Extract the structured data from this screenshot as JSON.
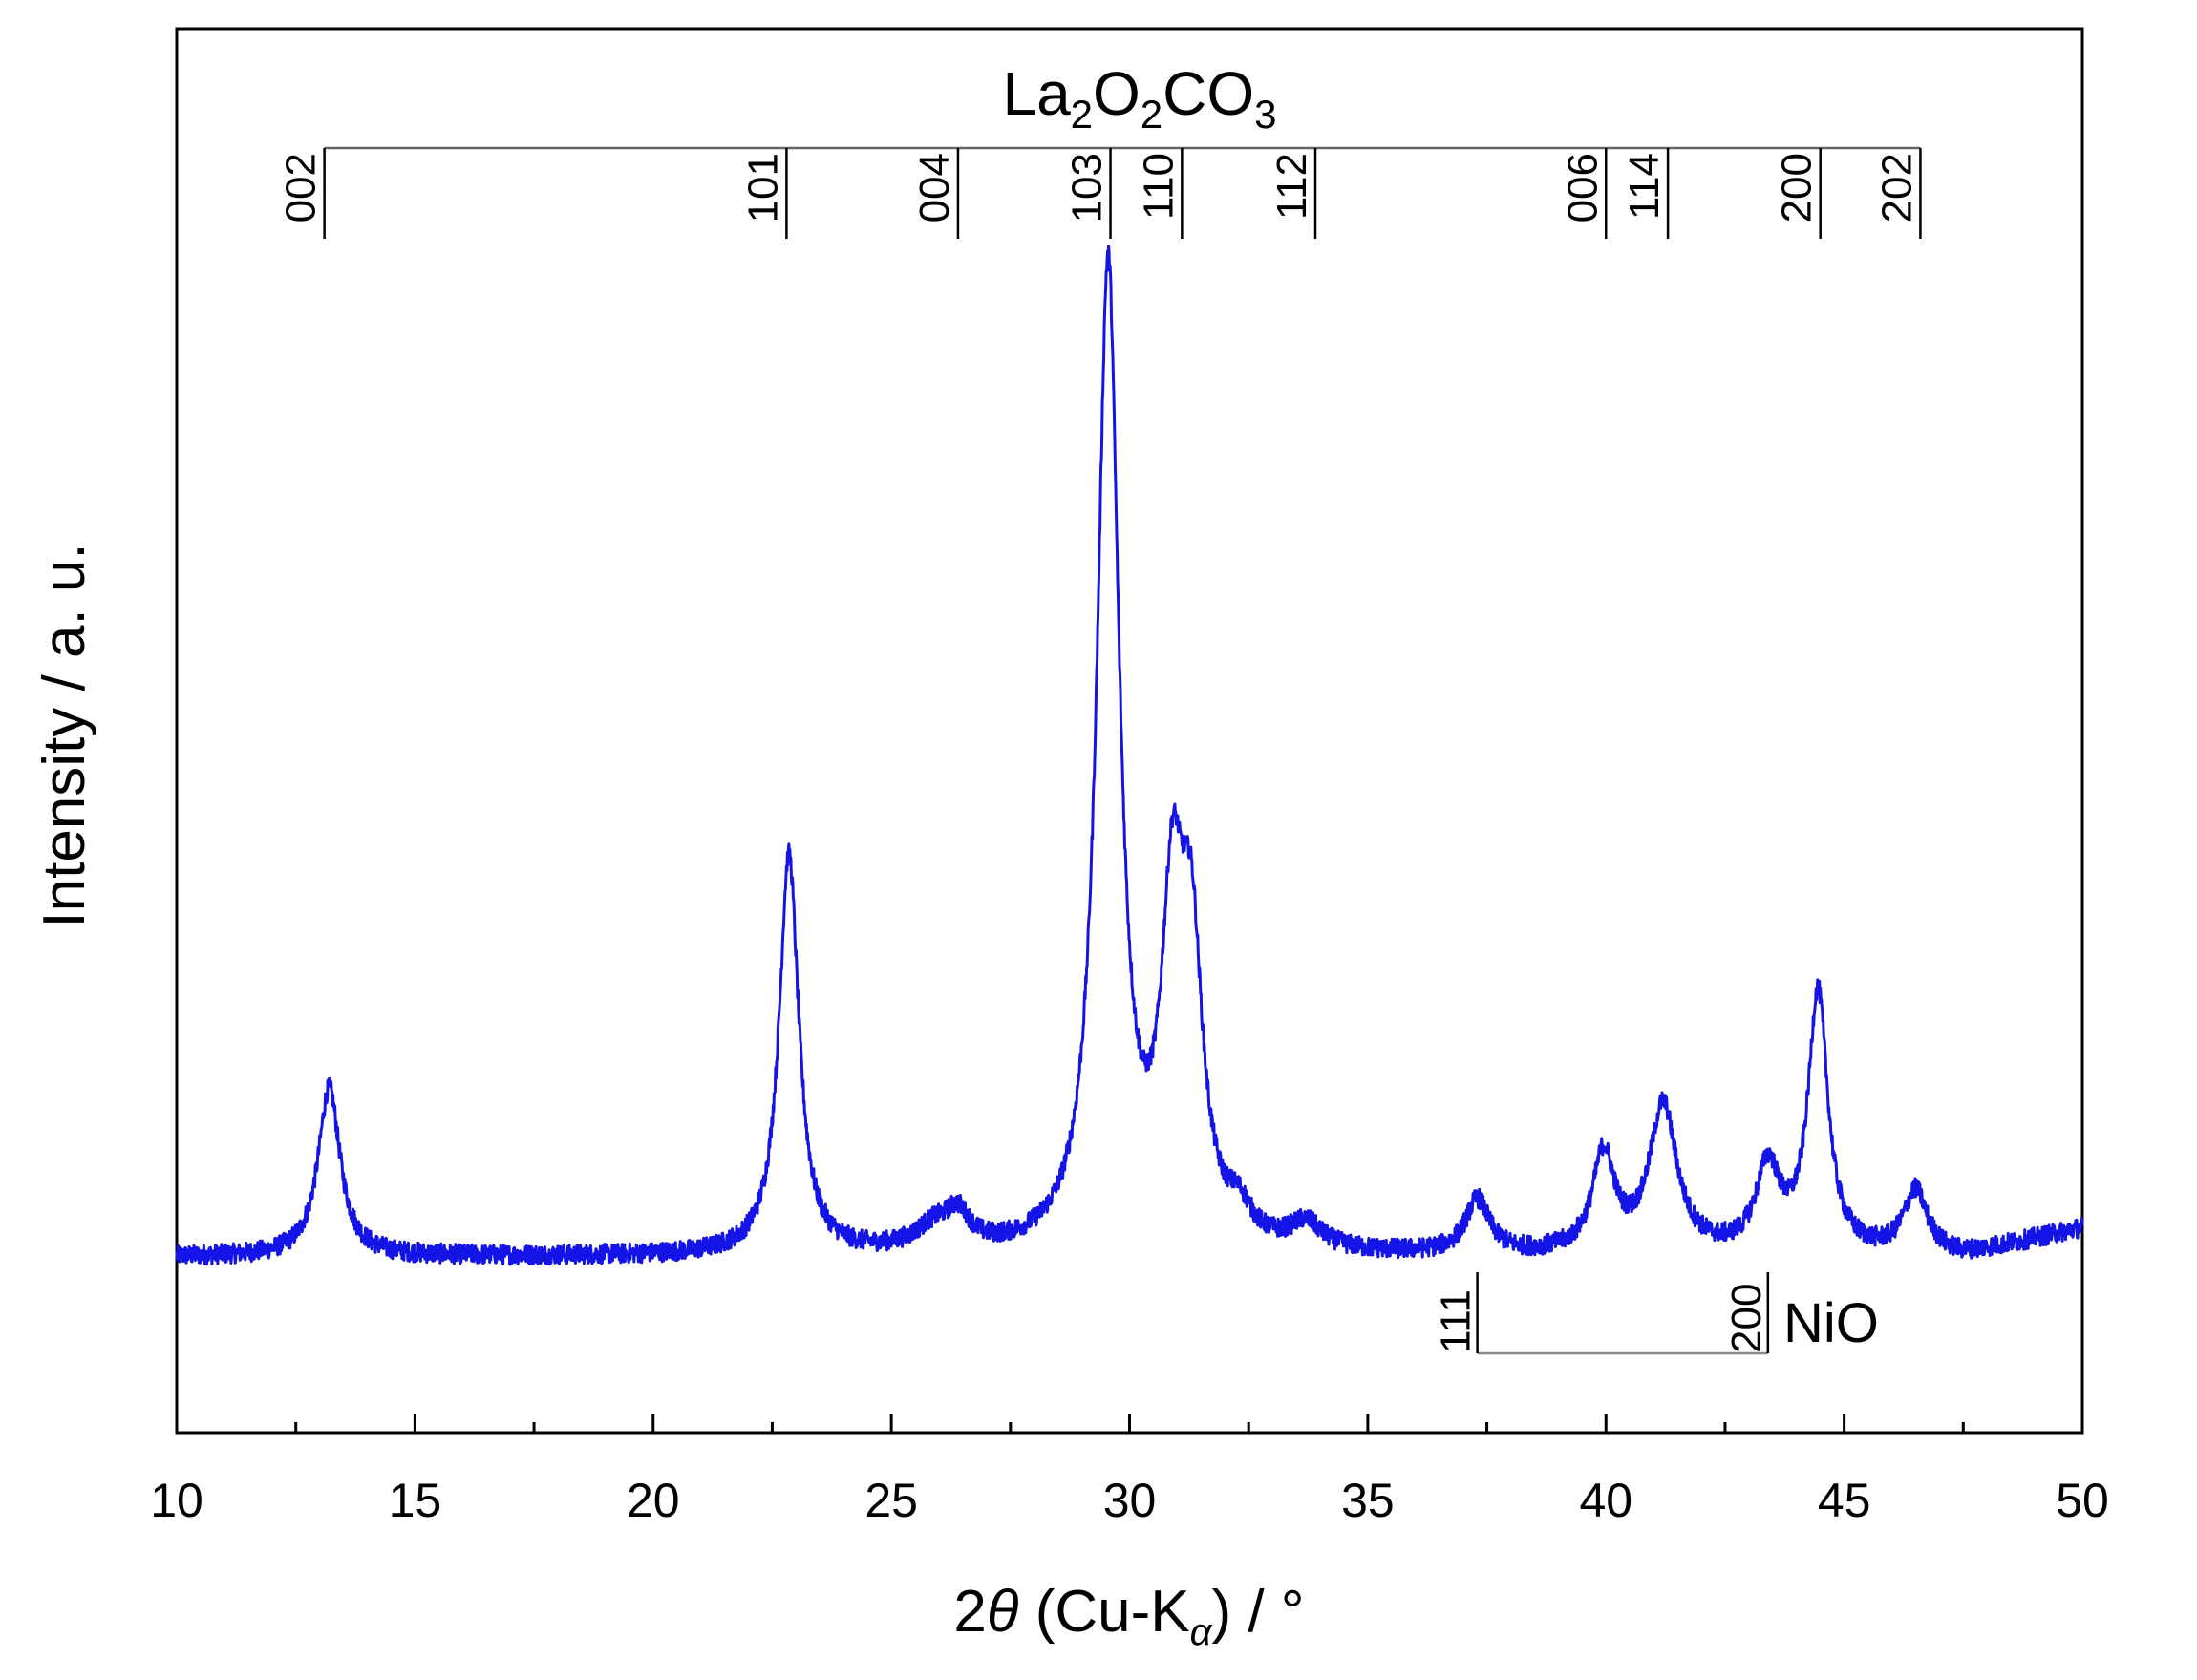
{
  "chart_data": {
    "type": "line",
    "xlabel": {
      "prefix": "2",
      "theta": "θ",
      "mid": " (Cu-K",
      "alpha": "α",
      "suffix": ") / °"
    },
    "ylabel": "Intensity / a. u.",
    "xlim": [
      10,
      50
    ],
    "ylim": [
      0,
      100
    ],
    "x_ticks": [
      10,
      15,
      20,
      25,
      30,
      35,
      40,
      45,
      50
    ],
    "x_tick_labels": [
      "10",
      "15",
      "20",
      "25",
      "30",
      "35",
      "40",
      "45",
      "50"
    ],
    "grid": false,
    "legend": "none",
    "line_color": "#1414e6",
    "series": [
      {
        "baseline": 12.5,
        "peaks": [
          {
            "x": 13.2,
            "height": 12.0,
            "width": 0.28
          },
          {
            "x": 22.85,
            "height": 28.5,
            "width": 0.25
          },
          {
            "x": 25.9,
            "height": 1.6,
            "width": 0.5
          },
          {
            "x": 26.4,
            "height": 2.2,
            "width": 0.3
          },
          {
            "x": 29.55,
            "height": 70.0,
            "width": 0.28
          },
          {
            "x": 30.9,
            "height": 22.0,
            "width": 0.28
          },
          {
            "x": 31.3,
            "height": 19.0,
            "width": 0.28
          },
          {
            "x": 32.3,
            "height": 2.0,
            "width": 0.3
          },
          {
            "x": 33.7,
            "height": 1.8,
            "width": 0.4
          },
          {
            "x": 37.3,
            "height": 3.8,
            "width": 0.3
          },
          {
            "x": 39.95,
            "height": 7.0,
            "width": 0.28
          },
          {
            "x": 41.2,
            "height": 10.5,
            "width": 0.35
          },
          {
            "x": 43.4,
            "height": 6.0,
            "width": 0.3
          },
          {
            "x": 44.45,
            "height": 18.5,
            "width": 0.25
          },
          {
            "x": 46.5,
            "height": 4.5,
            "width": 0.3
          }
        ]
      }
    ],
    "reference_phases": [
      {
        "name_parts": {
          "a": "La",
          "s1": "2",
          "b": "O",
          "s2": "2",
          "c": "CO",
          "s3": "3"
        },
        "position": "top",
        "reflections": [
          {
            "hkl": "002",
            "x": 13.1
          },
          {
            "hkl": "101",
            "x": 22.8
          },
          {
            "hkl": "004",
            "x": 26.4
          },
          {
            "hkl": "103",
            "x": 29.6
          },
          {
            "hkl": "110",
            "x": 31.1
          },
          {
            "hkl": "112",
            "x": 33.9
          },
          {
            "hkl": "006",
            "x": 40.0
          },
          {
            "hkl": "114",
            "x": 41.3
          },
          {
            "hkl": "200",
            "x": 44.5
          },
          {
            "hkl": "202",
            "x": 46.6
          }
        ]
      },
      {
        "name": "NiO",
        "position": "bottom",
        "reflections": [
          {
            "hkl": "111",
            "x": 37.3
          },
          {
            "hkl": "200",
            "x": 43.4
          }
        ]
      }
    ]
  }
}
